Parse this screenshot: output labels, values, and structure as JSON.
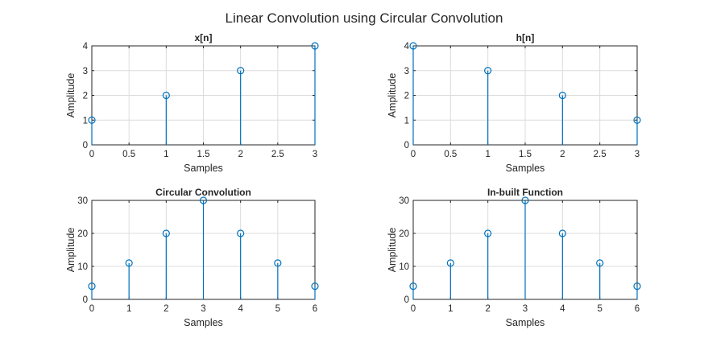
{
  "figure": {
    "title": "Linear Convolution using Circular Convolution"
  },
  "chart_data": [
    {
      "type": "stem",
      "title": "x[n]",
      "xlabel": "Samples",
      "ylabel": "Amplitude",
      "x": [
        0,
        1,
        2,
        3
      ],
      "y": [
        1,
        2,
        3,
        4
      ],
      "xlim": [
        0,
        3
      ],
      "ylim": [
        0,
        4
      ],
      "xticks": [
        0,
        0.5,
        1,
        1.5,
        2,
        2.5,
        3
      ],
      "yticks": [
        0,
        1,
        2,
        3,
        4
      ],
      "grid": true,
      "color": "#0072bd"
    },
    {
      "type": "stem",
      "title": "h[n]",
      "xlabel": "Samples",
      "ylabel": "Amplitude",
      "x": [
        0,
        1,
        2,
        3
      ],
      "y": [
        4,
        3,
        2,
        1
      ],
      "xlim": [
        0,
        3
      ],
      "ylim": [
        0,
        4
      ],
      "xticks": [
        0,
        0.5,
        1,
        1.5,
        2,
        2.5,
        3
      ],
      "yticks": [
        0,
        1,
        2,
        3,
        4
      ],
      "grid": true,
      "color": "#0072bd"
    },
    {
      "type": "stem",
      "title": "Circular Convolution",
      "xlabel": "Samples",
      "ylabel": "Amplitude",
      "x": [
        0,
        1,
        2,
        3,
        4,
        5,
        6
      ],
      "y": [
        4,
        11,
        20,
        30,
        20,
        11,
        4
      ],
      "xlim": [
        0,
        6
      ],
      "ylim": [
        0,
        30
      ],
      "xticks": [
        0,
        1,
        2,
        3,
        4,
        5,
        6
      ],
      "yticks": [
        0,
        10,
        20,
        30
      ],
      "grid": true,
      "color": "#0072bd"
    },
    {
      "type": "stem",
      "title": "In-built Function",
      "xlabel": "Samples",
      "ylabel": "Amplitude",
      "x": [
        0,
        1,
        2,
        3,
        4,
        5,
        6
      ],
      "y": [
        4,
        11,
        20,
        30,
        20,
        11,
        4
      ],
      "xlim": [
        0,
        6
      ],
      "ylim": [
        0,
        30
      ],
      "xticks": [
        0,
        1,
        2,
        3,
        4,
        5,
        6
      ],
      "yticks": [
        0,
        10,
        20,
        30
      ],
      "grid": true,
      "color": "#0072bd"
    }
  ]
}
